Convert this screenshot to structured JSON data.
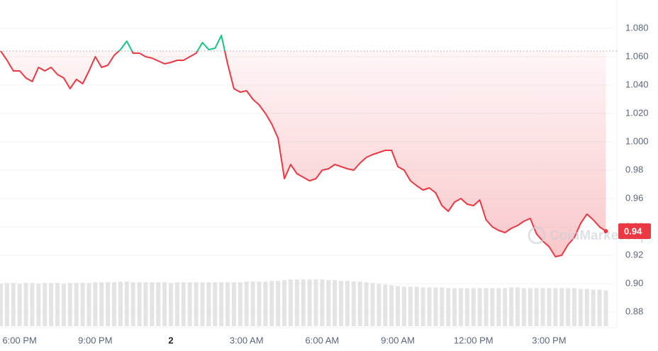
{
  "chart_data": {
    "type": "line",
    "categories": [
      null,
      null,
      null,
      "6:00 PM",
      null,
      null,
      null,
      null,
      null,
      null,
      null,
      null,
      null,
      null,
      null,
      "9:00 PM",
      null,
      null,
      null,
      null,
      null,
      null,
      null,
      null,
      null,
      null,
      null,
      "2",
      null,
      null,
      null,
      null,
      null,
      null,
      null,
      null,
      null,
      null,
      null,
      "3:00 AM",
      null,
      null,
      null,
      null,
      null,
      null,
      null,
      null,
      null,
      null,
      null,
      "6:00 AM",
      null,
      null,
      null,
      null,
      null,
      null,
      null,
      null,
      null,
      null,
      null,
      "9:00 AM",
      null,
      null,
      null,
      null,
      null,
      null,
      null,
      null,
      null,
      null,
      null,
      "12:00 PM",
      null,
      null,
      null,
      null,
      null,
      null,
      null,
      null,
      null,
      null,
      null,
      "3:00 PM",
      null,
      null,
      null,
      null,
      null,
      null,
      null,
      null,
      null
    ],
    "values": [
      1.064,
      1.0575,
      1.05,
      1.05,
      1.045,
      1.0425,
      1.0525,
      1.05,
      1.0525,
      1.0475,
      1.045,
      1.0375,
      1.044,
      1.041,
      1.05,
      1.06,
      1.0525,
      1.054,
      1.061,
      1.065,
      1.071,
      1.0625,
      1.0625,
      1.06,
      1.059,
      1.057,
      1.055,
      1.056,
      1.0575,
      1.0575,
      1.06,
      1.0625,
      1.07,
      1.065,
      1.066,
      1.075,
      1.055,
      1.0375,
      1.035,
      1.036,
      1.03,
      1.026,
      1.02,
      1.0125,
      1.0025,
      0.974,
      0.984,
      0.9775,
      0.975,
      0.9725,
      0.974,
      0.98,
      0.981,
      0.984,
      0.9825,
      0.981,
      0.98,
      0.985,
      0.989,
      0.991,
      0.9925,
      0.994,
      0.994,
      0.9825,
      0.98,
      0.9725,
      0.969,
      0.966,
      0.9675,
      0.964,
      0.955,
      0.951,
      0.9575,
      0.96,
      0.956,
      0.955,
      0.959,
      0.945,
      0.94,
      0.9375,
      0.936,
      0.939,
      0.941,
      0.944,
      0.946,
      0.935,
      0.93,
      0.926,
      0.919,
      0.92,
      0.9275,
      0.9325,
      0.9425,
      0.949,
      0.945,
      0.94,
      0.937
    ],
    "color": "#ea3943",
    "up_color": "#16c784",
    "volume": [
      58,
      59,
      59,
      58,
      59,
      59,
      58,
      59,
      59,
      59,
      58,
      59,
      59,
      59,
      59,
      60,
      60,
      60,
      60,
      61,
      61,
      60,
      60,
      60,
      60,
      60,
      60,
      59,
      60,
      60,
      60,
      60,
      60,
      60,
      60,
      60,
      60,
      60,
      60,
      61,
      61,
      61,
      61,
      62,
      62,
      63,
      64,
      64,
      64,
      64,
      64,
      64,
      63,
      63,
      62,
      62,
      61,
      61,
      60,
      59,
      58,
      57,
      56,
      55,
      54,
      54,
      54,
      53,
      53,
      53,
      53,
      52,
      52,
      52,
      52,
      52,
      52,
      52,
      52,
      52,
      52,
      53,
      53,
      52,
      52,
      52,
      52,
      52,
      52,
      52,
      52,
      52,
      51,
      51,
      50,
      50,
      49
    ],
    "volume_color": "#d9d9d9",
    "ylim": [
      0.87,
      1.1
    ],
    "yticks": [
      {
        "value": 0.88,
        "label": "0.88"
      },
      {
        "value": 0.9,
        "label": "0.90"
      },
      0.92,
      0.94,
      0.96,
      0.98,
      {
        "value": 1,
        "label": "1.000"
      },
      {
        "value": 1.02,
        "label": "1.020"
      },
      {
        "value": 1.04,
        "label": "1.040"
      },
      {
        "value": 1.06,
        "label": "1.060"
      },
      {
        "value": 1.08,
        "label": "1.080"
      }
    ],
    "grid": true,
    "current_price": "0.94",
    "watermark": "CoinMarketCap"
  }
}
